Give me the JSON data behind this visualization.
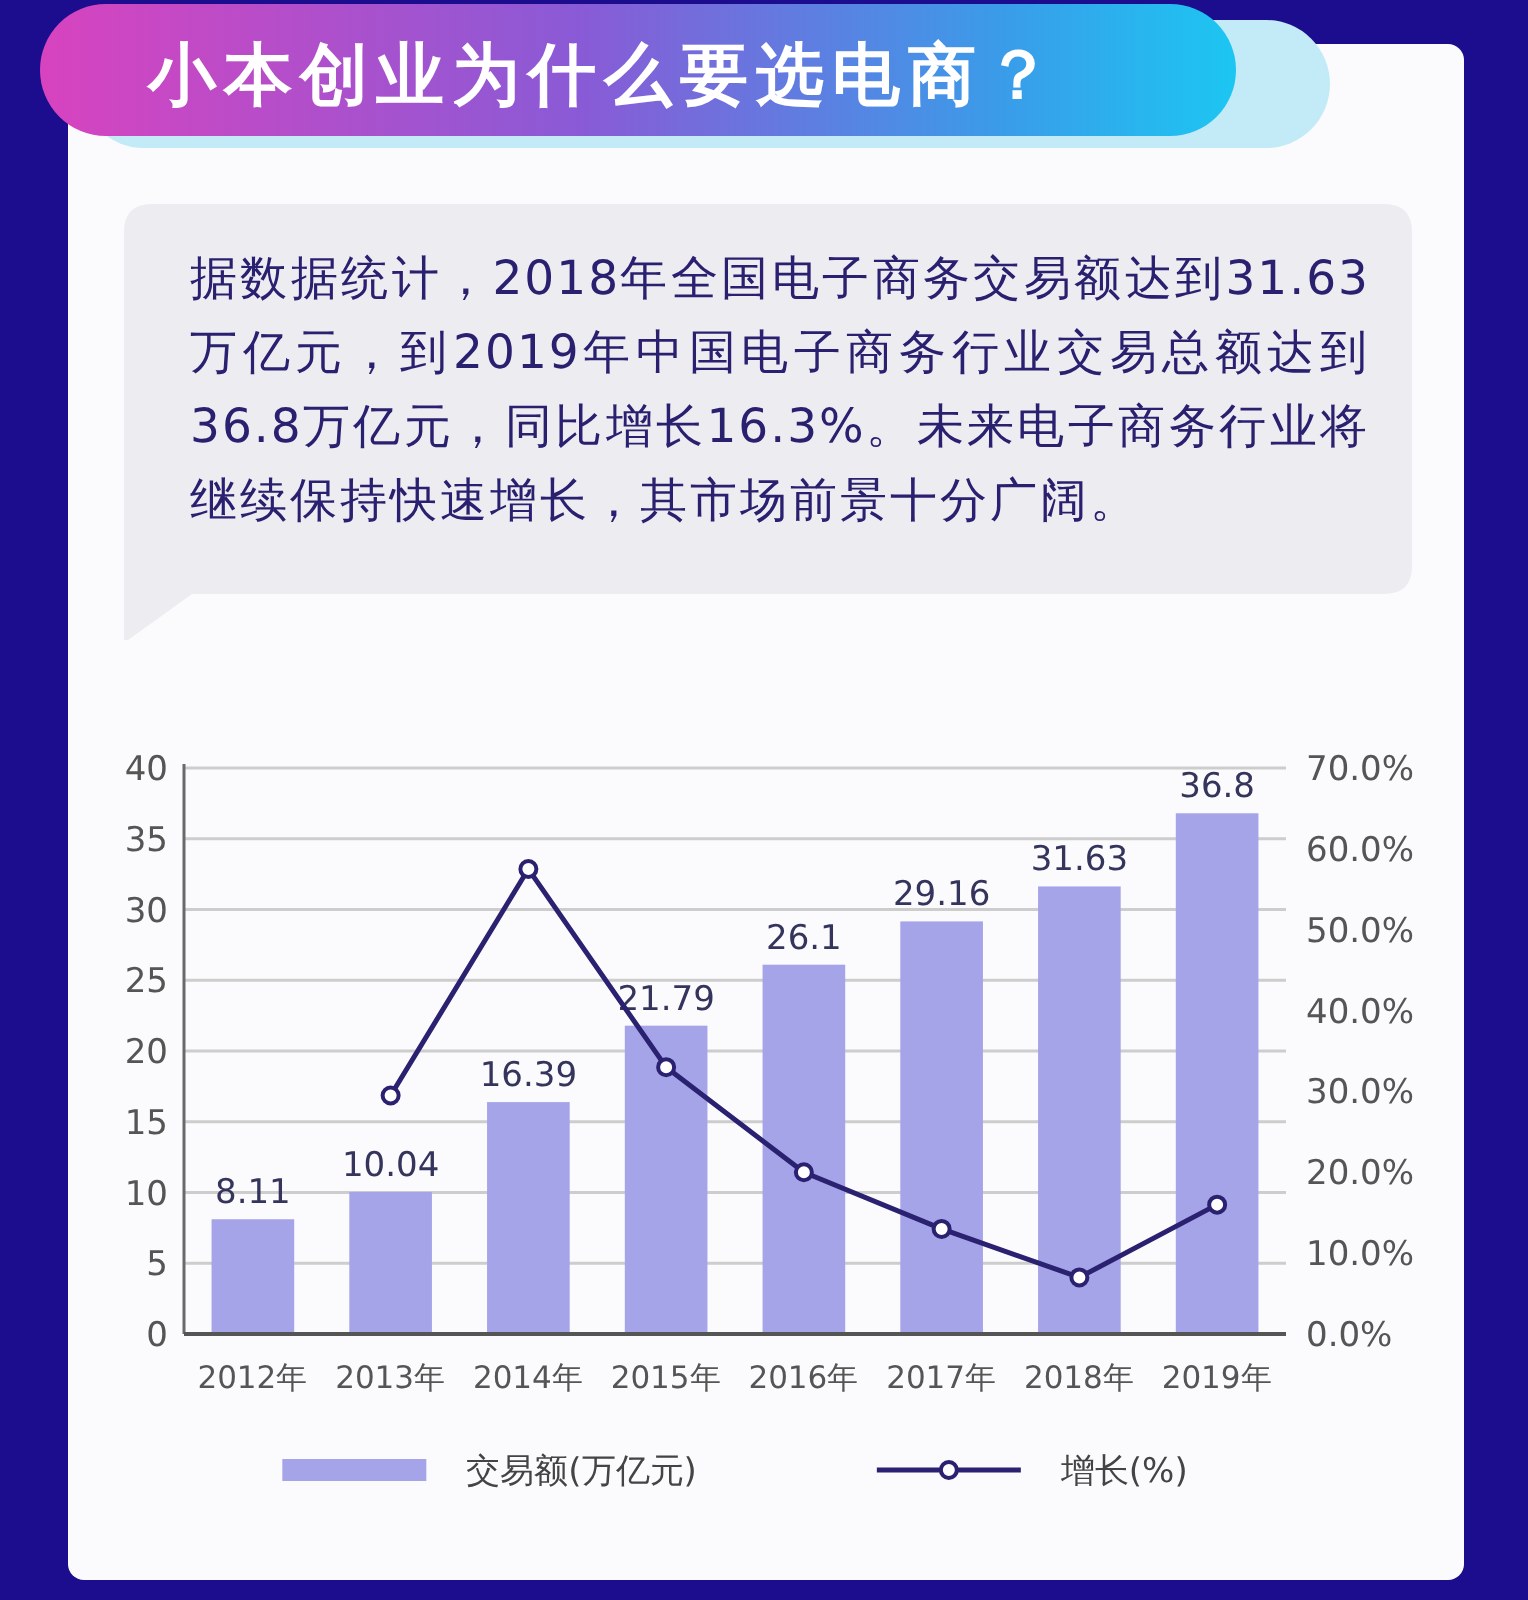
{
  "chart_data": {
    "type": "bar",
    "title": "小本创业为什么要选电商？",
    "annotations": [
      "据数据统计，2018年全国电子商务交易额达到31.63万亿元，到2019年中国电子商务行业交易总额达到36.8万亿元，同比增长16.3%。未来电子商务行业将继续保持快速增长，其市场前景十分广阔。"
    ],
    "categories": [
      "2012年",
      "2013年",
      "2014年",
      "2015年",
      "2016年",
      "2017年",
      "2018年",
      "2019年"
    ],
    "series": [
      {
        "name": "交易额(万亿元)",
        "color": "#a6a4e8",
        "values": [
          8.11,
          10.04,
          16.39,
          21.79,
          26.1,
          29.16,
          31.63,
          36.8
        ],
        "value_labels": [
          "8.11",
          "10.04",
          "16.39",
          "21.79",
          "26.1",
          "29.16",
          "31.63",
          "36.8"
        ]
      },
      {
        "name": "增长(%)",
        "type": "line",
        "axis": "y2",
        "color": "#2b2171",
        "marker": "circle",
        "values": [
          null,
          29.5,
          57.5,
          33,
          20,
          13,
          7,
          16
        ]
      }
    ],
    "ylim": [
      0,
      40
    ],
    "yticks": [
      0,
      5,
      10,
      15,
      20,
      25,
      30,
      35,
      40
    ],
    "y2lim": [
      0,
      70
    ],
    "y2ticks": [
      {
        "value": 0,
        "label": "0.0%"
      },
      {
        "value": 10,
        "label": "10.0%"
      },
      {
        "value": 20,
        "label": "20.0%"
      },
      {
        "value": 30,
        "label": "30.0%"
      },
      {
        "value": 40,
        "label": "40.0%"
      },
      {
        "value": 50,
        "label": "50.0%"
      },
      {
        "value": 60,
        "label": "60.0%"
      },
      {
        "value": 70,
        "label": "70.0%"
      }
    ],
    "grid": "y",
    "legend": "bottom"
  }
}
